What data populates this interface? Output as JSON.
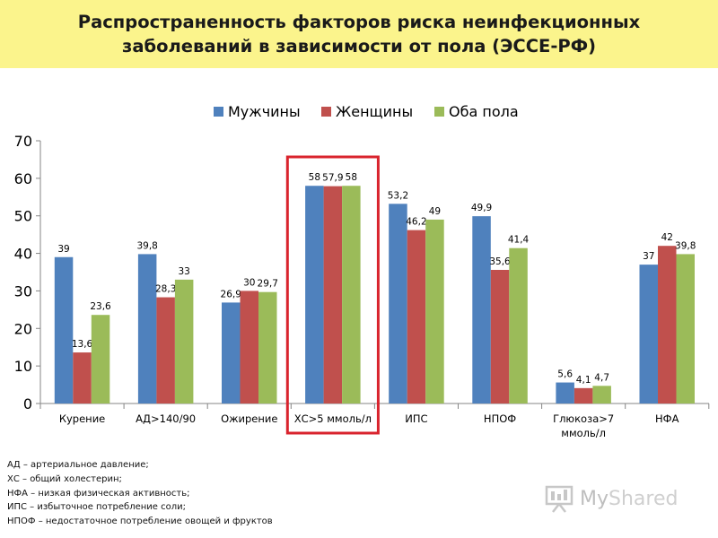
{
  "title": {
    "line1": "Распространенность факторов риска неинфекционных",
    "line2": "заболеваний в зависимости от пола (ЭССЕ-РФ)"
  },
  "chart_data": {
    "type": "bar",
    "categories": [
      "Курение",
      "АД>140/90",
      "Ожирение",
      "ХС>5 ммоль/л",
      "ИПС",
      "НПОФ",
      "Глюкоза>7\nммоль/л",
      "НФА"
    ],
    "series": [
      {
        "name": "Мужчины",
        "color": "#4f81bd",
        "values": [
          39,
          39.8,
          26.9,
          58,
          53.2,
          49.9,
          5.6,
          37
        ],
        "labels": [
          "39",
          "39,8",
          "26,9",
          "58",
          "53,2",
          "49,9",
          "5,6",
          "37"
        ]
      },
      {
        "name": "Женщины",
        "color": "#c0504d",
        "values": [
          13.6,
          28.3,
          30,
          57.9,
          46.2,
          35.6,
          4.1,
          42
        ],
        "labels": [
          "13,6",
          "28,3",
          "30",
          "57,9",
          "46,2",
          "35,6",
          "4,1",
          "42"
        ]
      },
      {
        "name": "Оба пола",
        "color": "#9bbb59",
        "values": [
          23.6,
          33,
          29.7,
          58,
          49,
          41.4,
          4.7,
          39.8
        ],
        "labels": [
          "23,6",
          "33",
          "29,7",
          "58",
          "49",
          "41,4",
          "4,7",
          "39,8"
        ]
      }
    ],
    "ylim": [
      0,
      70
    ],
    "yticks": [
      0,
      10,
      20,
      30,
      40,
      50,
      60,
      70
    ],
    "legend": "top",
    "grid": false,
    "highlight_category": "ХС>5 ммоль/л",
    "highlight_color": "#d9232d"
  },
  "footnotes": [
    "АД – артериальное давление;",
    "ХС – общий холестерин;",
    "НФА – низкая физическая активность;",
    "ИПС – избыточное потребление соли;",
    "НПОФ – недостаточное потребление овощей и фруктов"
  ],
  "watermark": {
    "text_a": "My",
    "text_b": "Shared",
    "icon": "presentation-board-icon"
  }
}
